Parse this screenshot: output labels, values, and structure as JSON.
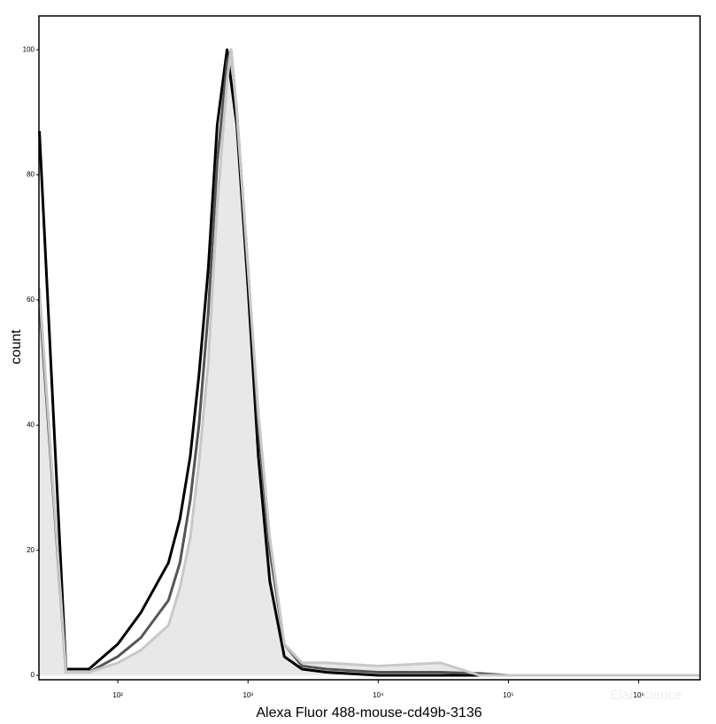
{
  "chart_data": {
    "type": "line",
    "xscale": "log",
    "xlabel": "Alexa Fluor 488-mouse-cd49b-3136",
    "ylabel": "count",
    "watermark": "Elabscience",
    "x": [
      25,
      40,
      60,
      100,
      150,
      245,
      300,
      360,
      420,
      495,
      580,
      690,
      740,
      820,
      1000,
      1200,
      1470,
      1900,
      2600,
      4000,
      10000,
      30000,
      60000,
      100000,
      1000000,
      2900000
    ],
    "series": [
      {
        "name": "black",
        "color": "#000000",
        "area": false,
        "values": [
          87,
          1,
          1,
          5,
          10,
          18,
          25,
          35,
          48,
          65,
          88,
          100,
          95,
          88,
          62,
          35,
          15,
          3,
          1,
          0.5,
          0,
          0,
          0,
          0,
          0,
          0
        ]
      },
      {
        "name": "dark-gray",
        "color": "#555555",
        "area": false,
        "values": [
          60,
          0.5,
          0.5,
          3,
          6,
          12,
          18,
          28,
          40,
          58,
          82,
          98,
          100,
          90,
          65,
          40,
          20,
          5,
          1.5,
          1,
          0.5,
          0.5,
          0.3,
          0,
          0,
          0
        ]
      },
      {
        "name": "light-gray",
        "color": "#c8c8c8",
        "fill": "#e8e8e8",
        "area": true,
        "values": [
          62,
          0.5,
          0.5,
          2,
          4,
          8,
          14,
          22,
          34,
          50,
          75,
          95,
          100,
          90,
          65,
          42,
          22,
          5,
          2,
          2,
          1.5,
          2,
          0,
          0,
          0,
          0
        ]
      }
    ],
    "xlim": [
      24.8,
      2960000
    ],
    "ylim": [
      -0.7,
      105.4
    ],
    "xticks": [
      {
        "value": 100,
        "label": "10²"
      },
      {
        "value": 1000,
        "label": "10³"
      },
      {
        "value": 10000,
        "label": "10⁴"
      },
      {
        "value": 100000,
        "label": "10⁵"
      },
      {
        "value": 1000000,
        "label": "10⁶"
      }
    ],
    "yticks": [
      0,
      20,
      40,
      60,
      80,
      100
    ]
  }
}
